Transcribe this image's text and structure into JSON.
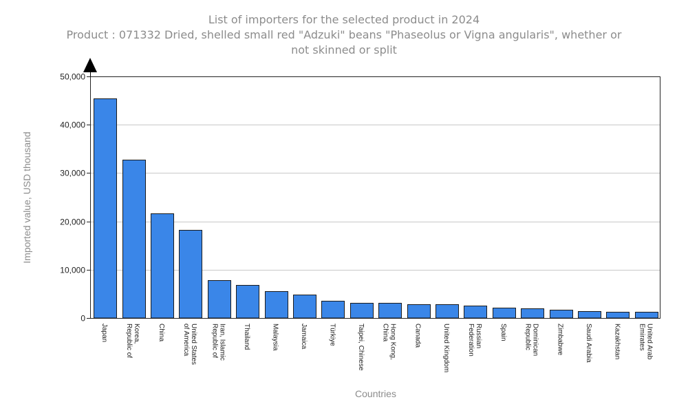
{
  "chart_data": {
    "type": "bar",
    "title": "List of importers for the selected product in 2024",
    "subtitle_line1": "Product : 071332 Dried, shelled small red \"Adzuki\" beans \"Phaseolus or Vigna angularis\", whether or",
    "subtitle_line2": "not skinned or split",
    "xlabel": "Countries",
    "ylabel": "Imported value, USD thousand",
    "ylim": [
      0,
      50000
    ],
    "yticks": [
      "0",
      "10,000",
      "20,000",
      "30,000",
      "40,000",
      "50,000"
    ],
    "ytick_values": [
      0,
      10000,
      20000,
      30000,
      40000,
      50000
    ],
    "grid": true,
    "bar_color": "#3a86e8",
    "categories": [
      [
        "Japan"
      ],
      [
        "Korea,",
        "Republic of"
      ],
      [
        "China"
      ],
      [
        "United States",
        "of America"
      ],
      [
        "Iran, Islamic",
        "Republic of"
      ],
      [
        "Thailand"
      ],
      [
        "Malaysia"
      ],
      [
        "Jamaica"
      ],
      [
        "Türkiye"
      ],
      [
        "Taipei, Chinese"
      ],
      [
        "Hong Kong,",
        "China"
      ],
      [
        "Canada"
      ],
      [
        "United Kingdom"
      ],
      [
        "Russian",
        "Federation"
      ],
      [
        "Spain"
      ],
      [
        "Dominican",
        "Republic"
      ],
      [
        "Zimbabwe"
      ],
      [
        "Saudi Arabia"
      ],
      [
        "Kazakhstan"
      ],
      [
        "United Arab",
        "Emirates"
      ]
    ],
    "values": [
      45500,
      32800,
      21700,
      18200,
      7900,
      6900,
      5500,
      4800,
      3500,
      3200,
      3100,
      2900,
      2800,
      2500,
      2100,
      1950,
      1650,
      1400,
      1350,
      1250
    ]
  }
}
